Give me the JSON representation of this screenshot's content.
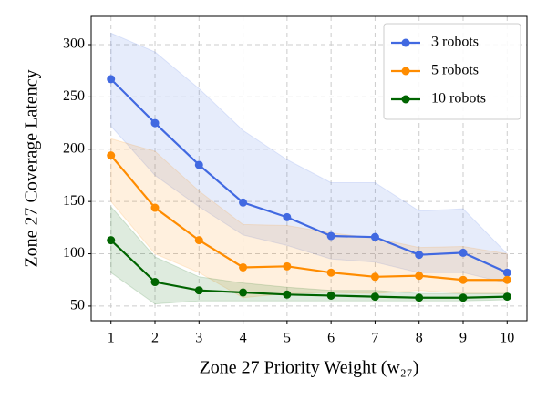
{
  "chart_data": {
    "type": "line",
    "x_label": "Zone 27 Priority Weight (w₂₇)",
    "y_label": "Zone 27 Coverage Latency",
    "x": [
      1,
      2,
      3,
      4,
      5,
      6,
      7,
      8,
      9,
      10
    ],
    "xlim": [
      0.55,
      10.45
    ],
    "xticks": [
      1,
      2,
      3,
      4,
      5,
      6,
      7,
      8,
      9,
      10
    ],
    "ylim": [
      36,
      327
    ],
    "yticks": [
      50,
      100,
      150,
      200,
      250,
      300
    ],
    "grid": true,
    "legend": "upper right",
    "series": [
      {
        "name": "3 robots",
        "color": "#4169e1",
        "values": [
          267,
          225,
          185,
          149,
          135,
          117,
          116,
          99,
          101,
          82
        ],
        "upper": [
          311,
          293,
          258,
          218,
          190,
          168,
          168,
          141,
          143,
          100
        ],
        "lower": [
          222,
          175,
          145,
          118,
          108,
          95,
          92,
          82,
          82,
          72
        ]
      },
      {
        "name": "5 robots",
        "color": "#ff8c00",
        "values": [
          194,
          144,
          113,
          87,
          88,
          82,
          78,
          79,
          75,
          75
        ],
        "upper": [
          210,
          198,
          160,
          128,
          127,
          120,
          115,
          106,
          107,
          100
        ],
        "lower": [
          150,
          100,
          82,
          58,
          62,
          63,
          62,
          65,
          62,
          62
        ]
      },
      {
        "name": "10 robots",
        "color": "#006400",
        "values": [
          113,
          73,
          65,
          63,
          61,
          60,
          59,
          58,
          58,
          59
        ],
        "upper": [
          145,
          97,
          78,
          72,
          68,
          65,
          65,
          62,
          62,
          62
        ],
        "lower": [
          82,
          52,
          55,
          55,
          55,
          55,
          55,
          55,
          55,
          56
        ]
      }
    ]
  }
}
